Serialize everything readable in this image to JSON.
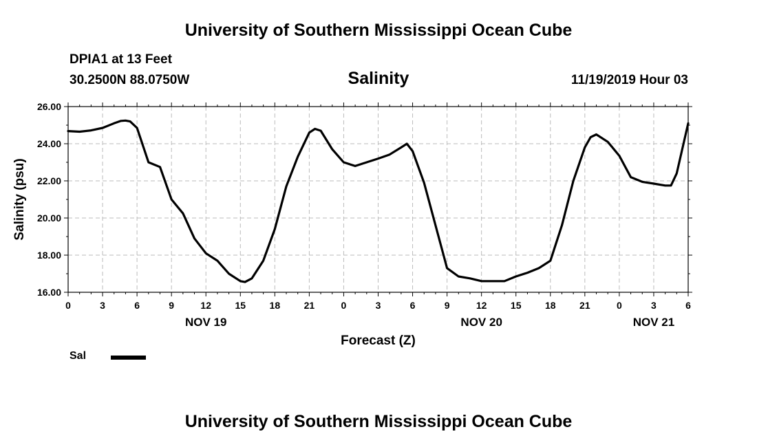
{
  "header": {
    "title": "University of Southern Mississippi Ocean Cube",
    "station": "DPIA1 at 13 Feet",
    "coords": "30.2500N 88.0750W",
    "datetime": "11/19/2019 Hour 03"
  },
  "footer": {
    "title": "University of Southern Mississippi Ocean Cube"
  },
  "chart_data": {
    "type": "line",
    "title": "Salinity",
    "xlabel": "Forecast (Z)",
    "ylabel": "Salinity (psu)",
    "ylim": [
      16,
      26
    ],
    "xlim": [
      0,
      54
    ],
    "x_unit": "hours from 00Z Nov 19",
    "y_ticks": [
      "16.00",
      "18.00",
      "20.00",
      "22.00",
      "24.00",
      "26.00"
    ],
    "x_ticks": [
      {
        "x": 0,
        "label": "0"
      },
      {
        "x": 3,
        "label": "3"
      },
      {
        "x": 6,
        "label": "6"
      },
      {
        "x": 9,
        "label": "9"
      },
      {
        "x": 12,
        "label": "12"
      },
      {
        "x": 15,
        "label": "15"
      },
      {
        "x": 18,
        "label": "18"
      },
      {
        "x": 21,
        "label": "21"
      },
      {
        "x": 24,
        "label": "0"
      },
      {
        "x": 27,
        "label": "3"
      },
      {
        "x": 30,
        "label": "6"
      },
      {
        "x": 33,
        "label": "9"
      },
      {
        "x": 36,
        "label": "12"
      },
      {
        "x": 39,
        "label": "15"
      },
      {
        "x": 42,
        "label": "18"
      },
      {
        "x": 45,
        "label": "21"
      },
      {
        "x": 48,
        "label": "0"
      },
      {
        "x": 51,
        "label": "3"
      },
      {
        "x": 54,
        "label": "6"
      }
    ],
    "day_labels": [
      {
        "x": 12,
        "label": "NOV 19"
      },
      {
        "x": 36,
        "label": "NOV 20"
      },
      {
        "x": 51,
        "label": "NOV 21"
      }
    ],
    "grid": true,
    "legend_placement": "bottom-left",
    "series": [
      {
        "name": "Sal",
        "color": "#000000",
        "x": [
          0,
          1,
          2,
          3,
          4,
          4.6,
          5,
          5.4,
          6,
          7,
          8,
          9,
          10,
          11,
          12,
          13,
          14,
          15,
          15.4,
          16,
          17,
          18,
          19,
          20,
          21,
          21.5,
          22,
          23,
          24,
          25,
          26,
          27,
          28,
          29,
          29.5,
          30,
          31,
          32,
          33,
          34,
          35,
          36,
          37,
          38,
          39,
          40,
          41,
          42,
          43,
          44,
          45,
          45.5,
          46,
          47,
          48,
          49,
          50,
          51,
          52,
          52.5,
          53,
          54
        ],
        "y": [
          24.68,
          24.65,
          24.72,
          24.85,
          25.1,
          25.23,
          25.25,
          25.2,
          24.85,
          23.0,
          22.75,
          21.0,
          20.25,
          18.9,
          18.1,
          17.7,
          17.0,
          16.6,
          16.55,
          16.75,
          17.7,
          19.4,
          21.7,
          23.3,
          24.6,
          24.8,
          24.7,
          23.7,
          23.0,
          22.8,
          23.0,
          23.2,
          23.42,
          23.8,
          24.0,
          23.6,
          21.9,
          19.6,
          17.3,
          16.85,
          16.75,
          16.6,
          16.6,
          16.6,
          16.85,
          17.05,
          17.3,
          17.7,
          19.6,
          22.0,
          23.8,
          24.35,
          24.5,
          24.1,
          23.35,
          22.2,
          21.95,
          21.85,
          21.75,
          21.75,
          22.4,
          25.1
        ]
      }
    ]
  }
}
